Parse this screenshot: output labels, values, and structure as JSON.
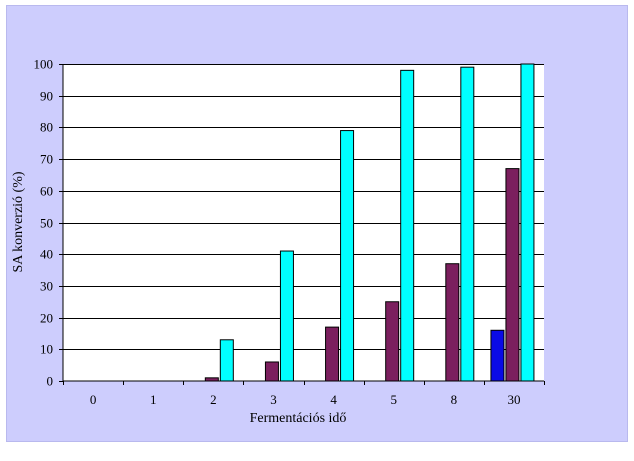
{
  "chart_data": {
    "type": "bar",
    "xlabel": "Fermentációs idő",
    "ylabel": "SA konverzió (%)",
    "categories": [
      "0",
      "1",
      "2",
      "3",
      "4",
      "5",
      "8",
      "30"
    ],
    "ylim": [
      0,
      100
    ],
    "yticks": [
      0,
      10,
      20,
      30,
      40,
      50,
      60,
      70,
      80,
      90,
      100
    ],
    "grid": "horizontal",
    "series": [
      {
        "color": "#0a0ae6",
        "values": [
          0,
          0,
          0,
          0,
          0,
          0,
          0,
          16
        ]
      },
      {
        "color": "#7b1f5e",
        "values": [
          0,
          0,
          1,
          6,
          17,
          25,
          37,
          67
        ]
      },
      {
        "color": "#00ffff",
        "values": [
          0,
          0,
          13,
          41,
          79,
          98,
          99,
          100
        ]
      }
    ],
    "plot_background": "#ffffff",
    "chart_background": "#cdcdfd"
  }
}
